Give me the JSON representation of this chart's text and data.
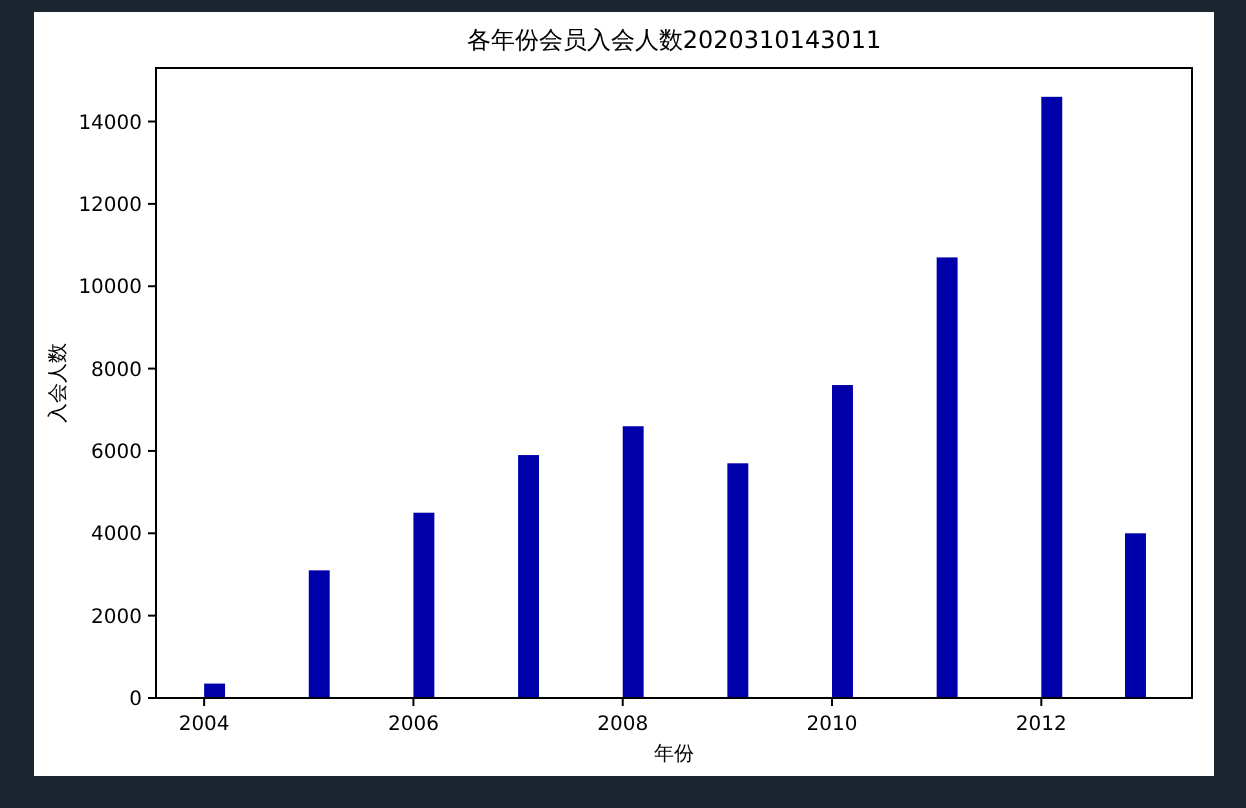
{
  "chart_data": {
    "type": "bar",
    "title": "各年份会员入会人数2020310143011",
    "xlabel": "年份",
    "ylabel": "入会人数",
    "x": [
      2004.1,
      2005.1,
      2006.1,
      2007.1,
      2008.1,
      2009.1,
      2010.1,
      2011.1,
      2012.1,
      2012.9
    ],
    "values": [
      350,
      3100,
      4500,
      5900,
      6600,
      5700,
      7600,
      10700,
      14600,
      4000
    ],
    "color": "#0000aa",
    "xlim": [
      2003.54,
      2013.44
    ],
    "xticks": [
      2004,
      2006,
      2008,
      2010,
      2012
    ],
    "ylim": [
      0,
      15300
    ],
    "yticks": [
      0,
      2000,
      4000,
      6000,
      8000,
      10000,
      12000,
      14000
    ],
    "grid": false
  }
}
